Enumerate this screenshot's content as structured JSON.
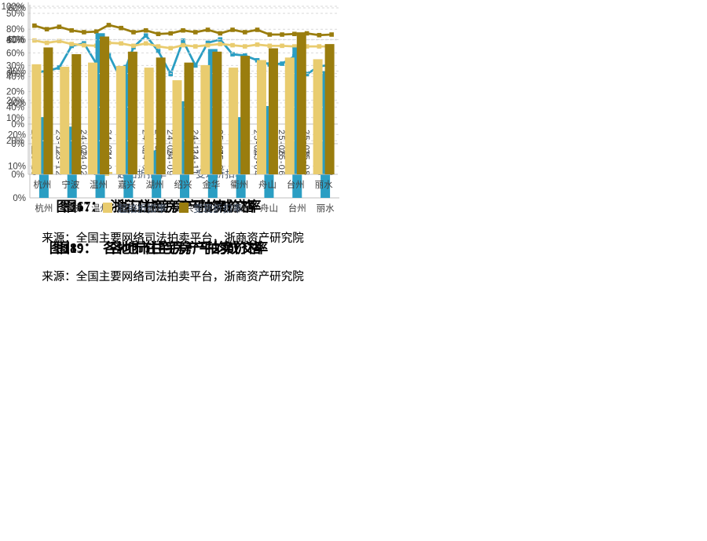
{
  "colors": {
    "teal": "#2B9EC3",
    "gold_light": "#E9CC6F",
    "gold_dark": "#9A7D0E",
    "grid": "#D9D9D9",
    "axis_line": "#BFBFBF",
    "axis_text": "#404040",
    "legend_text": "#44546A"
  },
  "figures": [
    {
      "id": "fig16",
      "caption_prefix": "图16：",
      "caption_title": "浙江住宅房产平均成交率",
      "source": "来源：全国主要网络司法拍卖平台，浙商资产研究院"
    },
    {
      "id": "fig17",
      "caption_prefix": "图17：",
      "caption_title": "浙江住宅房产拍卖价格",
      "source": "来源：全国主要网络司法拍卖平台，浙商资产研究院"
    },
    {
      "id": "fig18",
      "caption_prefix": "图18：",
      "caption_title": "各地市住宅房产平均成交率",
      "source": "来源：全国主要网络司法拍卖平台，浙商资产研究院"
    },
    {
      "id": "fig19",
      "caption_prefix": "图19：",
      "caption_title": "各地市住宅房产拍卖价格",
      "source": "来源：全国主要网络司法拍卖平台，浙商资产研究院"
    }
  ],
  "chart_data": [
    {
      "id": "fig16",
      "type": "line",
      "title": "浙江住宅房产平均成交率",
      "x": [
        "23-10",
        "23-11",
        "23-12",
        "24-01",
        "24-02",
        "24-03",
        "24-04",
        "24-05",
        "24-06",
        "24-07",
        "24-08",
        "24-09",
        "24-10",
        "24-11",
        "24-12",
        "25-01",
        "25-02",
        "25-03",
        "25-04",
        "25-05",
        "25-06",
        "25-07",
        "25-08",
        "25-09",
        "25-10"
      ],
      "series": [
        {
          "color_key": "teal",
          "values": [
            27.5,
            27.8,
            29.2,
            37.5,
            38.5,
            30.7,
            34.2,
            24.5,
            37.0,
            41.5,
            35.5,
            26.7,
            39.5,
            30.0,
            38.7,
            40.0,
            34.3,
            33.8,
            32.0,
            30.4,
            30.7,
            33.5,
            26.7,
            29.7,
            30.2
          ]
        }
      ],
      "ylim": [
        0,
        50
      ],
      "yticks": [
        0,
        10,
        20,
        30,
        40,
        50
      ],
      "ytick_suffix": "%",
      "grid": true,
      "legend_position": "none"
    },
    {
      "id": "fig17",
      "type": "line",
      "title": "浙江住宅房产拍卖价格",
      "x": [
        "23-10",
        "23-11",
        "23-12",
        "24-01",
        "24-02",
        "24-03",
        "24-04",
        "24-05",
        "24-06",
        "24-07",
        "24-08",
        "24-09",
        "24-10",
        "24-11",
        "24-12",
        "25-01",
        "25-02",
        "25-03",
        "25-04",
        "25-05",
        "25-06",
        "25-07",
        "25-08",
        "25-09",
        "25-10"
      ],
      "series": [
        {
          "name": "起拍折扣率",
          "color_key": "gold_light",
          "values": [
            70.5,
            68.5,
            70.0,
            67.5,
            66.5,
            66.0,
            68.5,
            68.0,
            66.0,
            68.0,
            65.5,
            64.0,
            66.5,
            65.5,
            66.5,
            67.5,
            66.5,
            65.5,
            67.0,
            66.0,
            66.0,
            65.5,
            65.5,
            65.5,
            65.5
          ]
        },
        {
          "name": "变现折扣率",
          "color_key": "gold_dark",
          "values": [
            83.0,
            80.0,
            82.0,
            79.0,
            77.5,
            78.0,
            83.5,
            81.0,
            77.5,
            79.0,
            76.0,
            76.5,
            79.0,
            77.5,
            79.5,
            76.5,
            79.5,
            77.5,
            79.5,
            75.5,
            75.5,
            76.0,
            76.5,
            75.0,
            75.5
          ]
        }
      ],
      "ylim": [
        0,
        100
      ],
      "yticks": [
        0,
        20,
        40,
        60,
        80
      ],
      "ytick_suffix": "%",
      "grid": true,
      "legend_position": "bottom"
    },
    {
      "id": "fig18",
      "type": "bar",
      "title": "各地市住宅房产平均成交率",
      "categories": [
        "杭州",
        "宁波",
        "温州",
        "嘉兴",
        "湖州",
        "绍兴",
        "金华",
        "衢州",
        "舟山",
        "台州",
        "丽水"
      ],
      "series": [
        {
          "color_key": "teal",
          "values": [
            25.5,
            22.5,
            52.0,
            42.0,
            15.0,
            30.5,
            47.0,
            25.5,
            29.0,
            47.5,
            40.0
          ]
        }
      ],
      "ylim": [
        0,
        60
      ],
      "yticks": [
        0,
        10,
        20,
        30,
        40,
        50,
        60
      ],
      "ytick_suffix": "%",
      "grid": true,
      "legend_position": "none"
    },
    {
      "id": "fig19",
      "type": "bar",
      "title": "各地市住宅房产拍卖价格",
      "categories": [
        "杭州",
        "宁波",
        "温州",
        "嘉兴",
        "湖州",
        "绍兴",
        "金华",
        "衢州",
        "舟山",
        "台州",
        "丽水"
      ],
      "series": [
        {
          "name": "起拍折扣率",
          "color_key": "gold_light",
          "values": [
            65.5,
            64.0,
            66.5,
            64.5,
            63.5,
            56.0,
            65.0,
            63.5,
            68.0,
            69.5,
            68.5
          ]
        },
        {
          "name": "变现折扣率",
          "color_key": "gold_dark",
          "values": [
            75.5,
            71.5,
            82.0,
            73.0,
            69.5,
            66.5,
            73.0,
            70.5,
            75.0,
            84.5,
            77.5
          ]
        }
      ],
      "ylim": [
        0,
        100
      ],
      "yticks": [
        0,
        20,
        40,
        60,
        80,
        100
      ],
      "ytick_suffix": "%",
      "grid": true,
      "legend_position": "bottom"
    }
  ]
}
